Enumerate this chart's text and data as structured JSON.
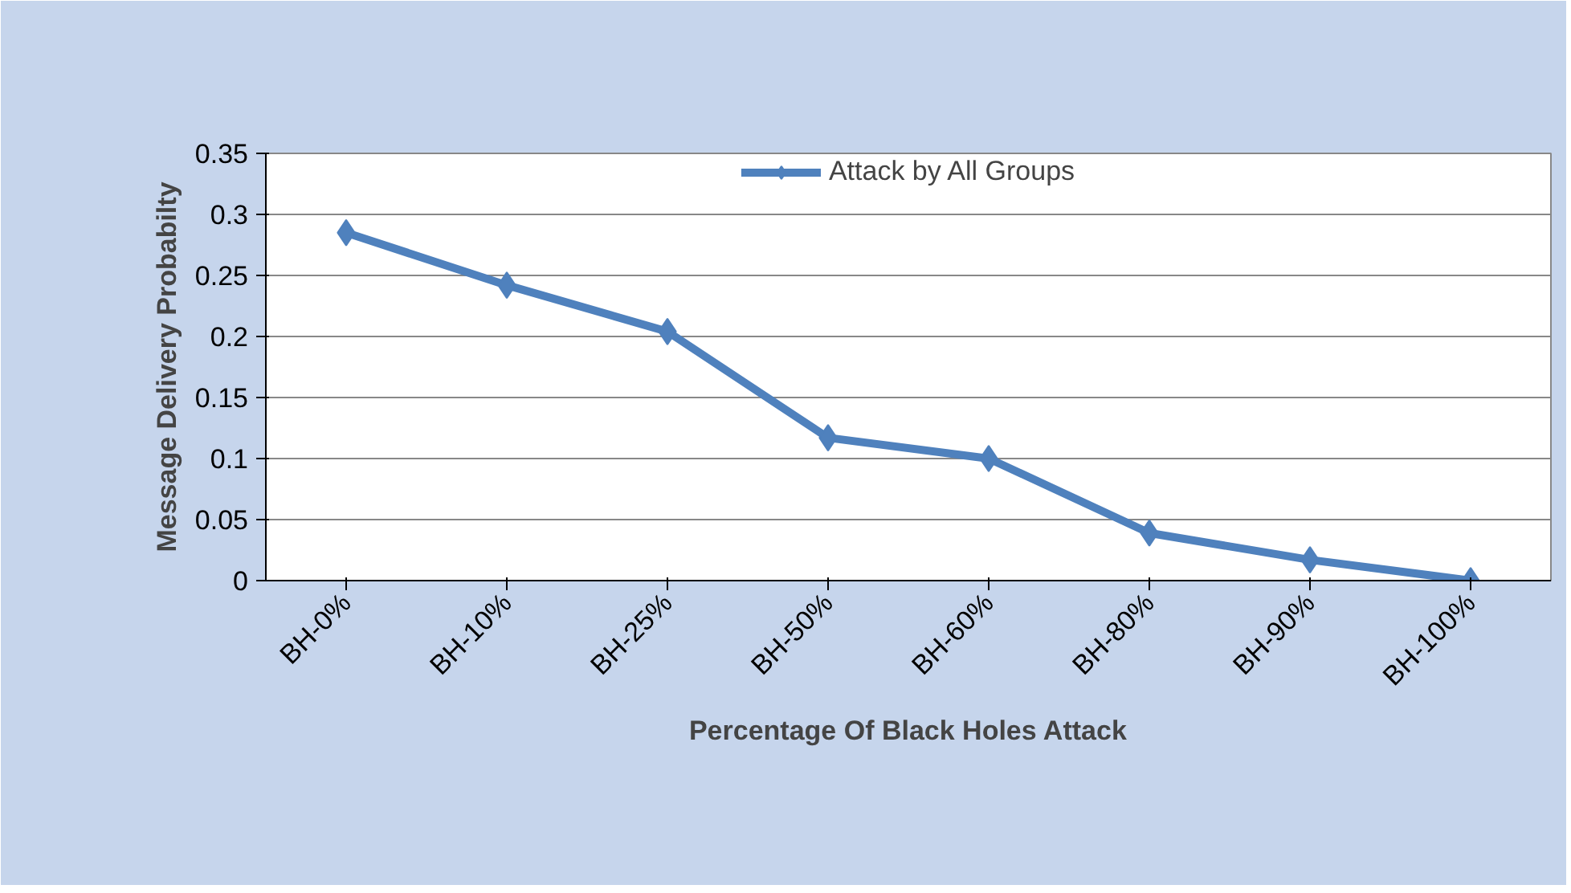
{
  "chart_data": {
    "type": "line",
    "xlabel": "Percentage Of Black Holes Attack",
    "ylabel": "Message Delivery Probabilty",
    "categories": [
      "BH-0%",
      "BH-10%",
      "BH-25%",
      "BH-50%",
      "BH-60%",
      "BH-80%",
      "BH-90%",
      "BH-100%"
    ],
    "series": [
      {
        "name": "Attack by All Groups",
        "color": "#4f81bd",
        "values": [
          0.285,
          0.242,
          0.204,
          0.117,
          0.1,
          0.039,
          0.017,
          0
        ]
      }
    ],
    "ylim": [
      0,
      0.35
    ],
    "yticks": [
      0,
      0.05,
      0.1,
      0.15,
      0.2,
      0.25,
      0.3,
      0.35
    ],
    "grid": "y",
    "legend": "top",
    "marker": "diamond",
    "line_style": "solid"
  }
}
